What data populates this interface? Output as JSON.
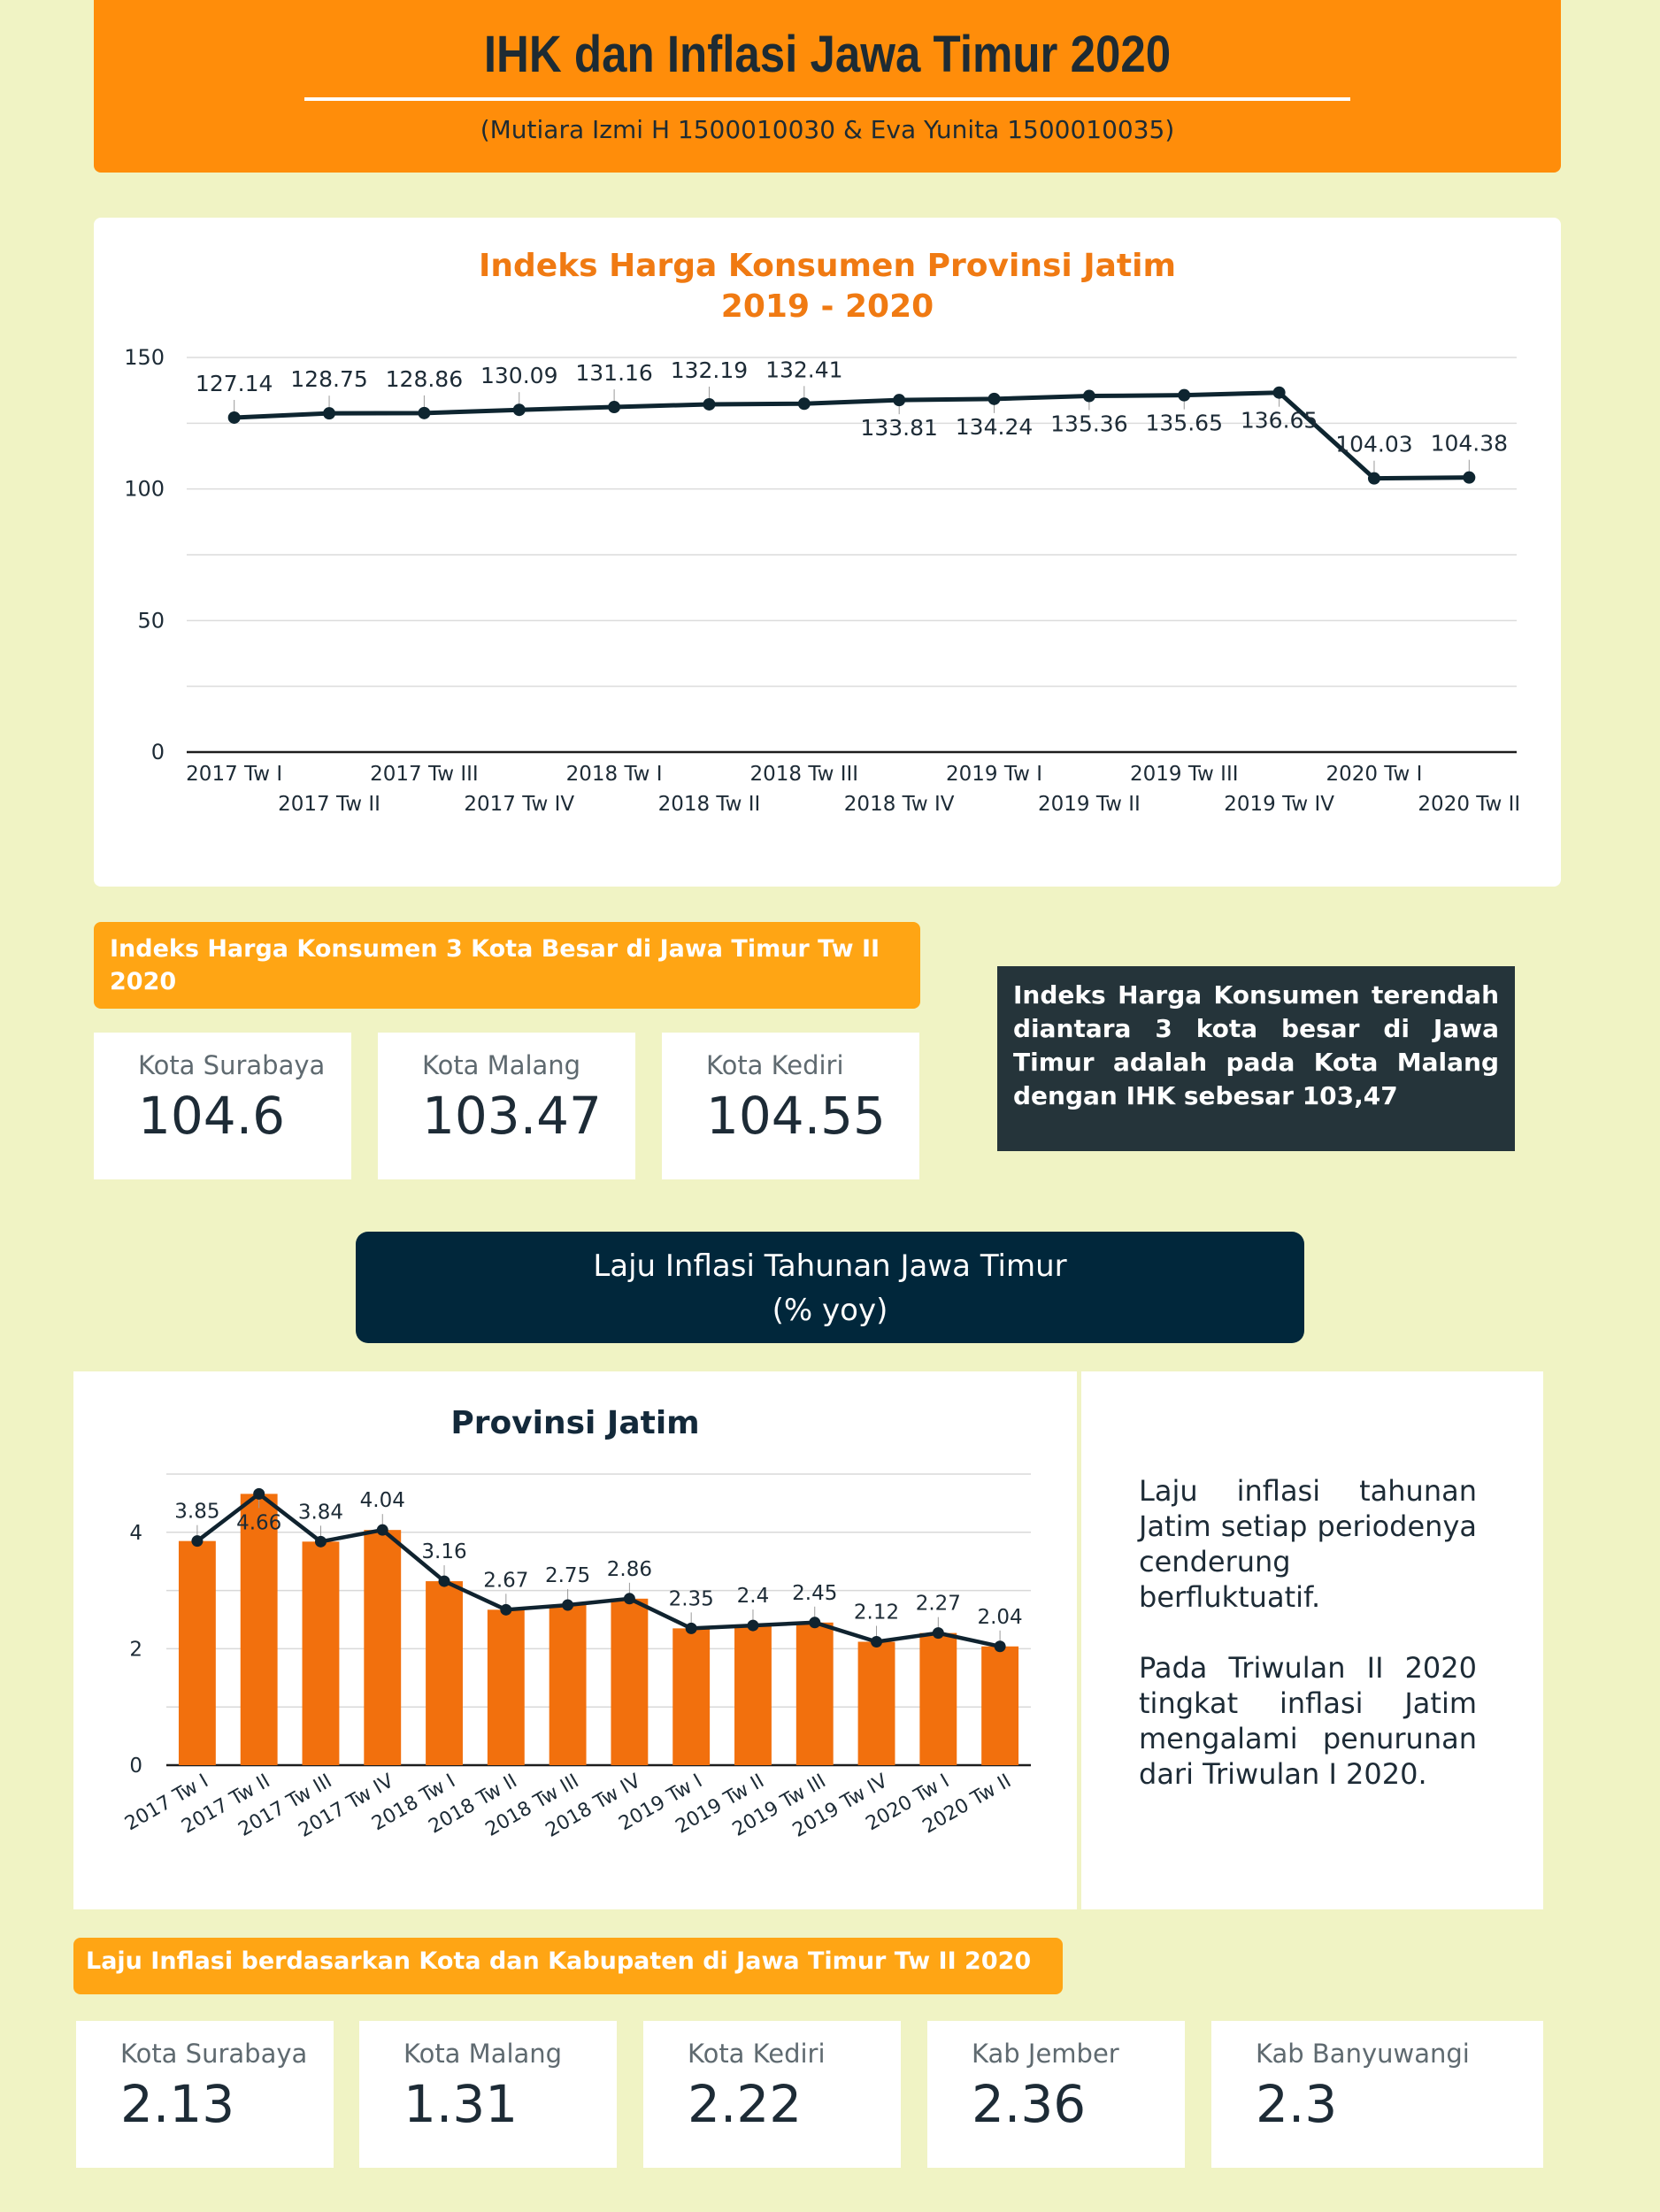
{
  "header": {
    "title": "IHK dan Inflasi Jawa Timur 2020",
    "subtitle": "(Mutiara Izmi H 1500010030 & Eva Yunita 1500010035)"
  },
  "ihk_chart": {
    "title_line1": "Indeks Harga Konsumen Provinsi Jatim",
    "title_line2": "2019 - 2020"
  },
  "city_ihk": {
    "heading": "Indeks Harga Konsumen 3 Kota Besar di Jawa Timur Tw II 2020",
    "cards": [
      {
        "label": "Kota Surabaya",
        "value": "104.6"
      },
      {
        "label": "Kota Malang",
        "value": "103.47"
      },
      {
        "label": "Kota Kediri",
        "value": "104.55"
      }
    ],
    "note": "Indeks Harga Konsumen terendah diantara 3 kota besar di Jawa Timur adalah pada Kota Malang dengan IHK sebesar 103,47"
  },
  "inflation_banner": {
    "line1": "Laju Inflasi Tahunan Jawa Timur",
    "line2": "(% yoy)"
  },
  "inflation_chart": {
    "title": "Provinsi Jatim"
  },
  "inflation_text": {
    "p1": "Laju inflasi tahunan Jatim setiap periodenya cenderung berfluktuatif.",
    "p2": "Pada Triwulan II 2020 tingkat inflasi Jatim mengalami penurunan dari Triwulan I 2020."
  },
  "regional": {
    "heading": "Laju Inflasi berdasarkan Kota dan Kabupaten di Jawa Timur Tw II 2020",
    "cards": [
      {
        "label": "Kota Surabaya",
        "value": "2.13"
      },
      {
        "label": "Kota Malang",
        "value": "1.31"
      },
      {
        "label": "Kota Kediri",
        "value": "2.22"
      },
      {
        "label": "Kab Jember",
        "value": "2.36"
      },
      {
        "label": "Kab Banyuwangi",
        "value": "2.3"
      }
    ]
  },
  "colors": {
    "orange": "#ff8d0a",
    "bar_orange": "#f2700d",
    "navy": "#01273b",
    "line": "#0e2530",
    "background": "#f0f3c4"
  },
  "chart_data": [
    {
      "type": "line",
      "title": "Indeks Harga Konsumen Provinsi Jatim 2019 - 2020",
      "categories": [
        "2017 Tw I",
        "2017 Tw II",
        "2017 Tw III",
        "2017 Tw IV",
        "2018 Tw I",
        "2018 Tw II",
        "2018 Tw III",
        "2018 Tw IV",
        "2019 Tw I",
        "2019 Tw II",
        "2019 Tw III",
        "2019 Tw IV",
        "2020 Tw I",
        "2020 Tw II"
      ],
      "series": [
        {
          "values": [
            127.14,
            128.75,
            128.86,
            130.09,
            131.16,
            132.19,
            132.41,
            133.81,
            134.24,
            135.36,
            135.65,
            136.65,
            104.03,
            104.38
          ]
        }
      ],
      "yticks": [
        0,
        50,
        100,
        150
      ],
      "ylim": [
        0,
        150
      ],
      "grid": true
    },
    {
      "type": "bar",
      "title": "Provinsi Jatim",
      "categories": [
        "2017 Tw I",
        "2017 Tw II",
        "2017 Tw III",
        "2017 Tw IV",
        "2018 Tw I",
        "2018 Tw II",
        "2018 Tw III",
        "2018 Tw IV",
        "2019 Tw I",
        "2019 Tw II",
        "2019 Tw III",
        "2019 Tw IV",
        "2020 Tw I",
        "2020 Tw II"
      ],
      "series": [
        {
          "type": "bar",
          "values": [
            3.85,
            4.66,
            3.84,
            4.04,
            3.16,
            2.67,
            2.75,
            2.86,
            2.35,
            2.4,
            2.45,
            2.12,
            2.27,
            2.04
          ]
        },
        {
          "type": "line",
          "values": [
            3.85,
            4.66,
            3.84,
            4.04,
            3.16,
            2.67,
            2.75,
            2.86,
            2.35,
            2.4,
            2.45,
            2.12,
            2.27,
            2.04
          ]
        }
      ],
      "yticks": [
        0,
        2,
        4
      ],
      "ylim": [
        0,
        5
      ],
      "grid": true
    }
  ]
}
